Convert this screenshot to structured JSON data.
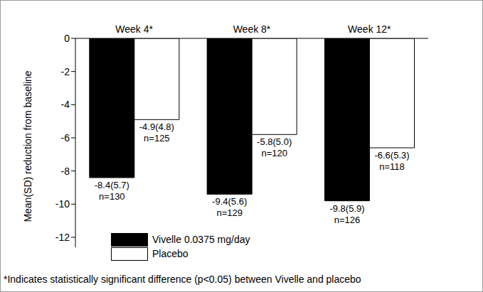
{
  "chart_data": {
    "type": "bar",
    "categories": [
      "Week 4*",
      "Week 8*",
      "Week 12*"
    ],
    "y_label": "Mean(SD) reduction from baseline",
    "ylim": [
      -12.6,
      0
    ],
    "yticks": [
      0,
      -2,
      -4,
      -6,
      -8,
      -10,
      -12
    ],
    "data_labels": true,
    "legend": "lower left",
    "series": [
      {
        "name": "Vivelle 0.0375 mg/day",
        "color": "#000000",
        "values": [
          -8.4,
          -9.4,
          -9.8
        ],
        "value_labels": [
          [
            "-8.4(5.7)",
            "n=130"
          ],
          [
            "-9.4(5.6)",
            "n=129"
          ],
          [
            "-9.8(5.9)",
            "n=126"
          ]
        ]
      },
      {
        "name": "Placebo",
        "color": "#ffffff",
        "values": [
          -4.9,
          -5.8,
          -6.6
        ],
        "value_labels": [
          [
            "-4.9(4.8)",
            "n=125"
          ],
          [
            "-5.8(5.0)",
            "n=120"
          ],
          [
            "-6.6(5.3)",
            "n=118"
          ]
        ]
      }
    ],
    "footnote": "*Indicates statistically significant difference (p<0.05) between Vivelle and placebo"
  }
}
